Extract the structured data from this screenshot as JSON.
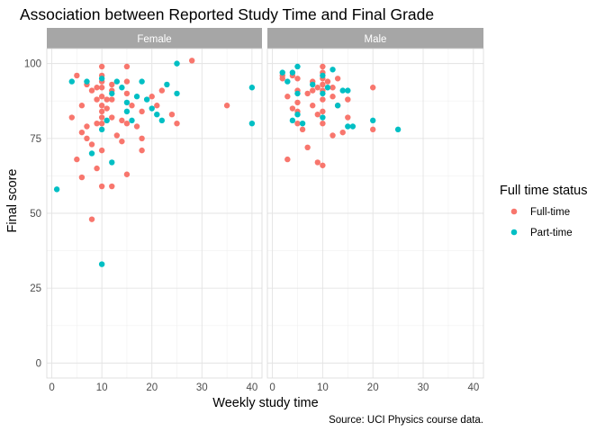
{
  "chart_data": {
    "type": "scatter",
    "title": "Association between Reported Study Time and Final Grade",
    "xlabel": "Weekly study time",
    "ylabel": "Final score",
    "caption": "Source: UCI Physics course data.",
    "xlim": [
      -1,
      42
    ],
    "ylim": [
      -5,
      105
    ],
    "x_ticks": [
      0,
      10,
      20,
      30,
      40
    ],
    "y_ticks": [
      0,
      25,
      50,
      75,
      100
    ],
    "grid": true,
    "legend": {
      "title": "Full time status",
      "placement": "right",
      "entries": [
        {
          "label": "Full-time",
          "color": "#F8766D"
        },
        {
          "label": "Part-time",
          "color": "#00BFC4"
        }
      ]
    },
    "facets": [
      {
        "label": "Female",
        "series": [
          {
            "name": "Full-time",
            "color": "#F8766D",
            "points": [
              [
                5,
                96
              ],
              [
                6,
                86
              ],
              [
                7,
                93
              ],
              [
                6,
                77
              ],
              [
                5,
                68
              ],
              [
                6,
                62
              ],
              [
                7,
                75
              ],
              [
                7,
                79
              ],
              [
                8,
                73
              ],
              [
                8,
                48
              ],
              [
                9,
                92
              ],
              [
                9,
                88
              ],
              [
                9,
                80
              ],
              [
                9,
                65
              ],
              [
                10,
                99
              ],
              [
                10,
                96
              ],
              [
                10,
                94
              ],
              [
                10,
                92
              ],
              [
                10,
                89
              ],
              [
                10,
                86
              ],
              [
                10,
                84
              ],
              [
                10,
                82
              ],
              [
                10,
                80
              ],
              [
                10,
                71
              ],
              [
                10,
                59
              ],
              [
                11,
                88
              ],
              [
                11,
                85
              ],
              [
                12,
                93
              ],
              [
                12,
                91
              ],
              [
                12,
                88
              ],
              [
                12,
                82
              ],
              [
                12,
                59
              ],
              [
                13,
                76
              ],
              [
                14,
                81
              ],
              [
                14,
                74
              ],
              [
                15,
                99
              ],
              [
                15,
                94
              ],
              [
                15,
                90
              ],
              [
                15,
                80
              ],
              [
                15,
                63
              ],
              [
                16,
                86
              ],
              [
                17,
                79
              ],
              [
                18,
                75
              ],
              [
                18,
                71
              ],
              [
                18,
                84
              ],
              [
                20,
                89
              ],
              [
                21,
                86
              ],
              [
                22,
                91
              ],
              [
                24,
                83
              ],
              [
                25,
                80
              ],
              [
                28,
                101
              ],
              [
                35,
                86
              ],
              [
                4,
                82
              ],
              [
                8,
                91
              ]
            ]
          },
          {
            "name": "Part-time",
            "color": "#00BFC4",
            "points": [
              [
                1,
                58
              ],
              [
                4,
                94
              ],
              [
                7,
                94
              ],
              [
                8,
                70
              ],
              [
                10,
                95
              ],
              [
                10,
                78
              ],
              [
                10,
                33
              ],
              [
                11,
                81
              ],
              [
                12,
                67
              ],
              [
                12,
                90
              ],
              [
                13,
                94
              ],
              [
                14,
                92
              ],
              [
                15,
                87
              ],
              [
                15,
                84
              ],
              [
                16,
                81
              ],
              [
                17,
                89
              ],
              [
                18,
                94
              ],
              [
                19,
                88
              ],
              [
                20,
                85
              ],
              [
                21,
                83
              ],
              [
                22,
                81
              ],
              [
                23,
                93
              ],
              [
                25,
                100
              ],
              [
                25,
                90
              ],
              [
                40,
                92
              ],
              [
                40,
                80
              ]
            ]
          }
        ]
      },
      {
        "label": "Male",
        "series": [
          {
            "name": "Full-time",
            "color": "#F8766D",
            "points": [
              [
                2,
                95
              ],
              [
                2,
                96
              ],
              [
                3,
                89
              ],
              [
                3,
                68
              ],
              [
                4,
                96
              ],
              [
                4,
                85
              ],
              [
                5,
                95
              ],
              [
                5,
                91
              ],
              [
                5,
                87
              ],
              [
                5,
                84
              ],
              [
                5,
                80
              ],
              [
                6,
                78
              ],
              [
                7,
                90
              ],
              [
                7,
                72
              ],
              [
                8,
                94
              ],
              [
                8,
                91
              ],
              [
                8,
                86
              ],
              [
                9,
                92
              ],
              [
                9,
                83
              ],
              [
                10,
                99
              ],
              [
                10,
                97
              ],
              [
                10,
                95
              ],
              [
                10,
                93
              ],
              [
                10,
                91
              ],
              [
                10,
                88
              ],
              [
                10,
                84
              ],
              [
                10,
                80
              ],
              [
                10,
                66
              ],
              [
                11,
                94
              ],
              [
                12,
                92
              ],
              [
                12,
                89
              ],
              [
                12,
                76
              ],
              [
                13,
                95
              ],
              [
                13,
                86
              ],
              [
                14,
                77
              ],
              [
                15,
                82
              ],
              [
                15,
                88
              ],
              [
                20,
                92
              ],
              [
                20,
                78
              ],
              [
                9,
                67
              ]
            ]
          },
          {
            "name": "Part-time",
            "color": "#00BFC4",
            "points": [
              [
                2,
                97
              ],
              [
                3,
                94
              ],
              [
                4,
                81
              ],
              [
                5,
                99
              ],
              [
                5,
                90
              ],
              [
                5,
                83
              ],
              [
                6,
                80
              ],
              [
                8,
                93
              ],
              [
                10,
                96
              ],
              [
                10,
                90
              ],
              [
                10,
                82
              ],
              [
                11,
                92
              ],
              [
                12,
                98
              ],
              [
                13,
                86
              ],
              [
                14,
                91
              ],
              [
                15,
                91
              ],
              [
                15,
                79
              ],
              [
                16,
                79
              ],
              [
                20,
                81
              ],
              [
                25,
                78
              ],
              [
                4,
                97
              ]
            ]
          }
        ]
      }
    ]
  }
}
